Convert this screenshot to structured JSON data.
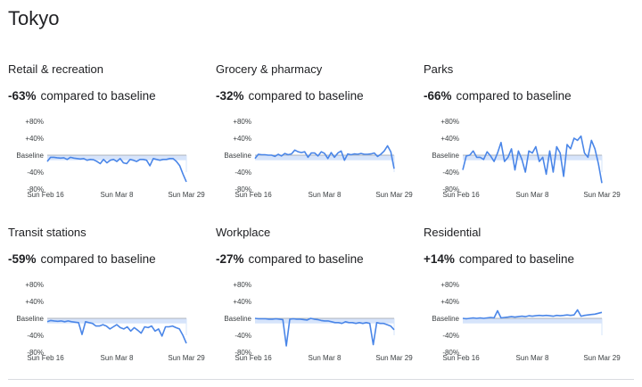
{
  "page": {
    "title": "Tokyo"
  },
  "colors": {
    "line": "#4a86e8",
    "band": "#d6e4fb",
    "baseline": "#9aa0a6"
  },
  "chart_data": [
    {
      "type": "line",
      "title": "Retail & recreation",
      "change": "-63%",
      "change_text": "compared to baseline",
      "yticks": [
        "+80%",
        "+40%",
        "Baseline",
        "-40%",
        "-80%"
      ],
      "xticks": [
        "Sun Feb 16",
        "Sun Mar 8",
        "Sun Mar 29"
      ],
      "ylim": [
        -80,
        80
      ],
      "values": [
        -15,
        -5,
        -5,
        -6,
        -7,
        -6,
        -10,
        -5,
        -7,
        -8,
        -9,
        -8,
        -12,
        -10,
        -11,
        -15,
        -20,
        -10,
        -18,
        -12,
        -10,
        -15,
        -8,
        -18,
        -20,
        -10,
        -12,
        -15,
        -10,
        -10,
        -12,
        -25,
        -8,
        -10,
        -12,
        -10,
        -10,
        -8,
        -8,
        -15,
        -25,
        -45,
        -63
      ]
    },
    {
      "type": "line",
      "title": "Grocery & pharmacy",
      "change": "-32%",
      "change_text": "compared to baseline",
      "yticks": [
        "+80%",
        "+40%",
        "Baseline",
        "-40%",
        "-80%"
      ],
      "xticks": [
        "Sun Feb 16",
        "Sun Mar 8",
        "Sun Mar 29"
      ],
      "ylim": [
        -80,
        80
      ],
      "values": [
        -8,
        2,
        1,
        1,
        0,
        0,
        -3,
        2,
        -2,
        4,
        1,
        3,
        12,
        8,
        6,
        8,
        -5,
        5,
        5,
        -2,
        8,
        4,
        -8,
        6,
        -5,
        5,
        10,
        -12,
        3,
        1,
        3,
        2,
        4,
        2,
        2,
        3,
        5,
        -3,
        2,
        10,
        22,
        8,
        -32
      ]
    },
    {
      "type": "line",
      "title": "Parks",
      "change": "-66%",
      "change_text": "compared to baseline",
      "yticks": [
        "+80%",
        "+40%",
        "Baseline",
        "-40%",
        "-80%"
      ],
      "xticks": [
        "Sun Feb 16",
        "Sun Mar 8",
        "Sun Mar 29"
      ],
      "ylim": [
        -80,
        80
      ],
      "values": [
        -35,
        -2,
        0,
        10,
        -5,
        -5,
        -10,
        8,
        -2,
        -15,
        5,
        30,
        -15,
        -5,
        15,
        -35,
        10,
        -10,
        -40,
        10,
        5,
        20,
        -15,
        -5,
        -45,
        10,
        -40,
        20,
        5,
        -50,
        25,
        15,
        40,
        35,
        45,
        5,
        -5,
        35,
        15,
        -20,
        -66
      ]
    },
    {
      "type": "line",
      "title": "Transit stations",
      "change": "-59%",
      "change_text": "compared to baseline",
      "yticks": [
        "+80%",
        "+40%",
        "Baseline",
        "-40%",
        "-80%"
      ],
      "xticks": [
        "Sun Feb 16",
        "Sun Mar 8",
        "Sun Mar 29"
      ],
      "ylim": [
        -80,
        80
      ],
      "values": [
        -8,
        -5,
        -6,
        -7,
        -6,
        -8,
        -6,
        -8,
        -9,
        -10,
        -38,
        -8,
        -10,
        -12,
        -18,
        -18,
        -15,
        -18,
        -25,
        -20,
        -15,
        -22,
        -25,
        -20,
        -30,
        -22,
        -28,
        -35,
        -20,
        -22,
        -18,
        -30,
        -25,
        -42,
        -20,
        -20,
        -18,
        -22,
        -25,
        -40,
        -59
      ]
    },
    {
      "type": "line",
      "title": "Workplace",
      "change": "-27%",
      "change_text": "compared to baseline",
      "yticks": [
        "+80%",
        "+40%",
        "Baseline",
        "-40%",
        "-80%"
      ],
      "xticks": [
        "Sun Feb 16",
        "Sun Mar 8",
        "Sun Mar 29"
      ],
      "ylim": [
        -80,
        80
      ],
      "values": [
        0,
        -1,
        -1,
        -1,
        -2,
        -2,
        -1,
        -2,
        -3,
        -65,
        -2,
        -1,
        -2,
        -2,
        -3,
        -4,
        0,
        -2,
        -3,
        -5,
        -6,
        -6,
        -8,
        -10,
        -10,
        -12,
        -8,
        -10,
        -10,
        -12,
        -10,
        -12,
        -10,
        -12,
        -62,
        -10,
        -12,
        -12,
        -15,
        -18,
        -27
      ]
    },
    {
      "type": "line",
      "title": "Residential",
      "change": "+14%",
      "change_text": "compared to baseline",
      "yticks": [
        "+80%",
        "+40%",
        "Baseline",
        "-40%",
        "-80%"
      ],
      "xticks": [
        "Sun Feb 16",
        "Sun Mar 8",
        "Sun Mar 29"
      ],
      "ylim": [
        -80,
        80
      ],
      "values": [
        0,
        -1,
        0,
        1,
        0,
        1,
        0,
        1,
        2,
        1,
        18,
        1,
        2,
        3,
        4,
        3,
        4,
        5,
        4,
        6,
        5,
        6,
        7,
        6,
        7,
        6,
        5,
        7,
        6,
        7,
        8,
        7,
        8,
        20,
        5,
        7,
        8,
        9,
        10,
        12,
        14
      ]
    }
  ]
}
